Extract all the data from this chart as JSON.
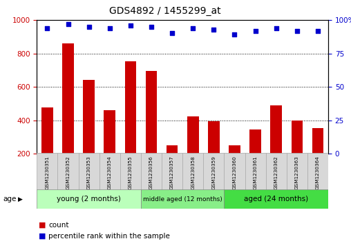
{
  "title": "GDS4892 / 1455299_at",
  "samples": [
    "GSM1230351",
    "GSM1230352",
    "GSM1230353",
    "GSM1230354",
    "GSM1230355",
    "GSM1230356",
    "GSM1230357",
    "GSM1230358",
    "GSM1230359",
    "GSM1230360",
    "GSM1230361",
    "GSM1230362",
    "GSM1230363",
    "GSM1230364"
  ],
  "counts": [
    475,
    860,
    640,
    460,
    755,
    695,
    250,
    425,
    395,
    250,
    345,
    490,
    400,
    355
  ],
  "percentiles": [
    94,
    97,
    95,
    94,
    96,
    95,
    90,
    94,
    93,
    89,
    92,
    94,
    92,
    92
  ],
  "ylim_left": [
    200,
    1000
  ],
  "ylim_right": [
    0,
    100
  ],
  "yticks_left": [
    200,
    400,
    600,
    800,
    1000
  ],
  "yticks_right": [
    0,
    25,
    50,
    75,
    100
  ],
  "grid_values": [
    400,
    600,
    800
  ],
  "bar_color": "#cc0000",
  "dot_color": "#0000cc",
  "groups": [
    {
      "label": "young (2 months)",
      "start": 0,
      "end": 5,
      "color": "#bbffbb"
    },
    {
      "label": "middle aged (12 months)",
      "start": 5,
      "end": 9,
      "color": "#88ee88"
    },
    {
      "label": "aged (24 months)",
      "start": 9,
      "end": 14,
      "color": "#44dd44"
    }
  ],
  "age_label": "age",
  "legend_count_label": "count",
  "legend_percentile_label": "percentile rank within the sample",
  "left_axis_color": "#cc0000",
  "right_axis_color": "#0000cc",
  "bar_bottom": 200,
  "sample_box_color": "#d8d8d8",
  "n_samples": 14
}
